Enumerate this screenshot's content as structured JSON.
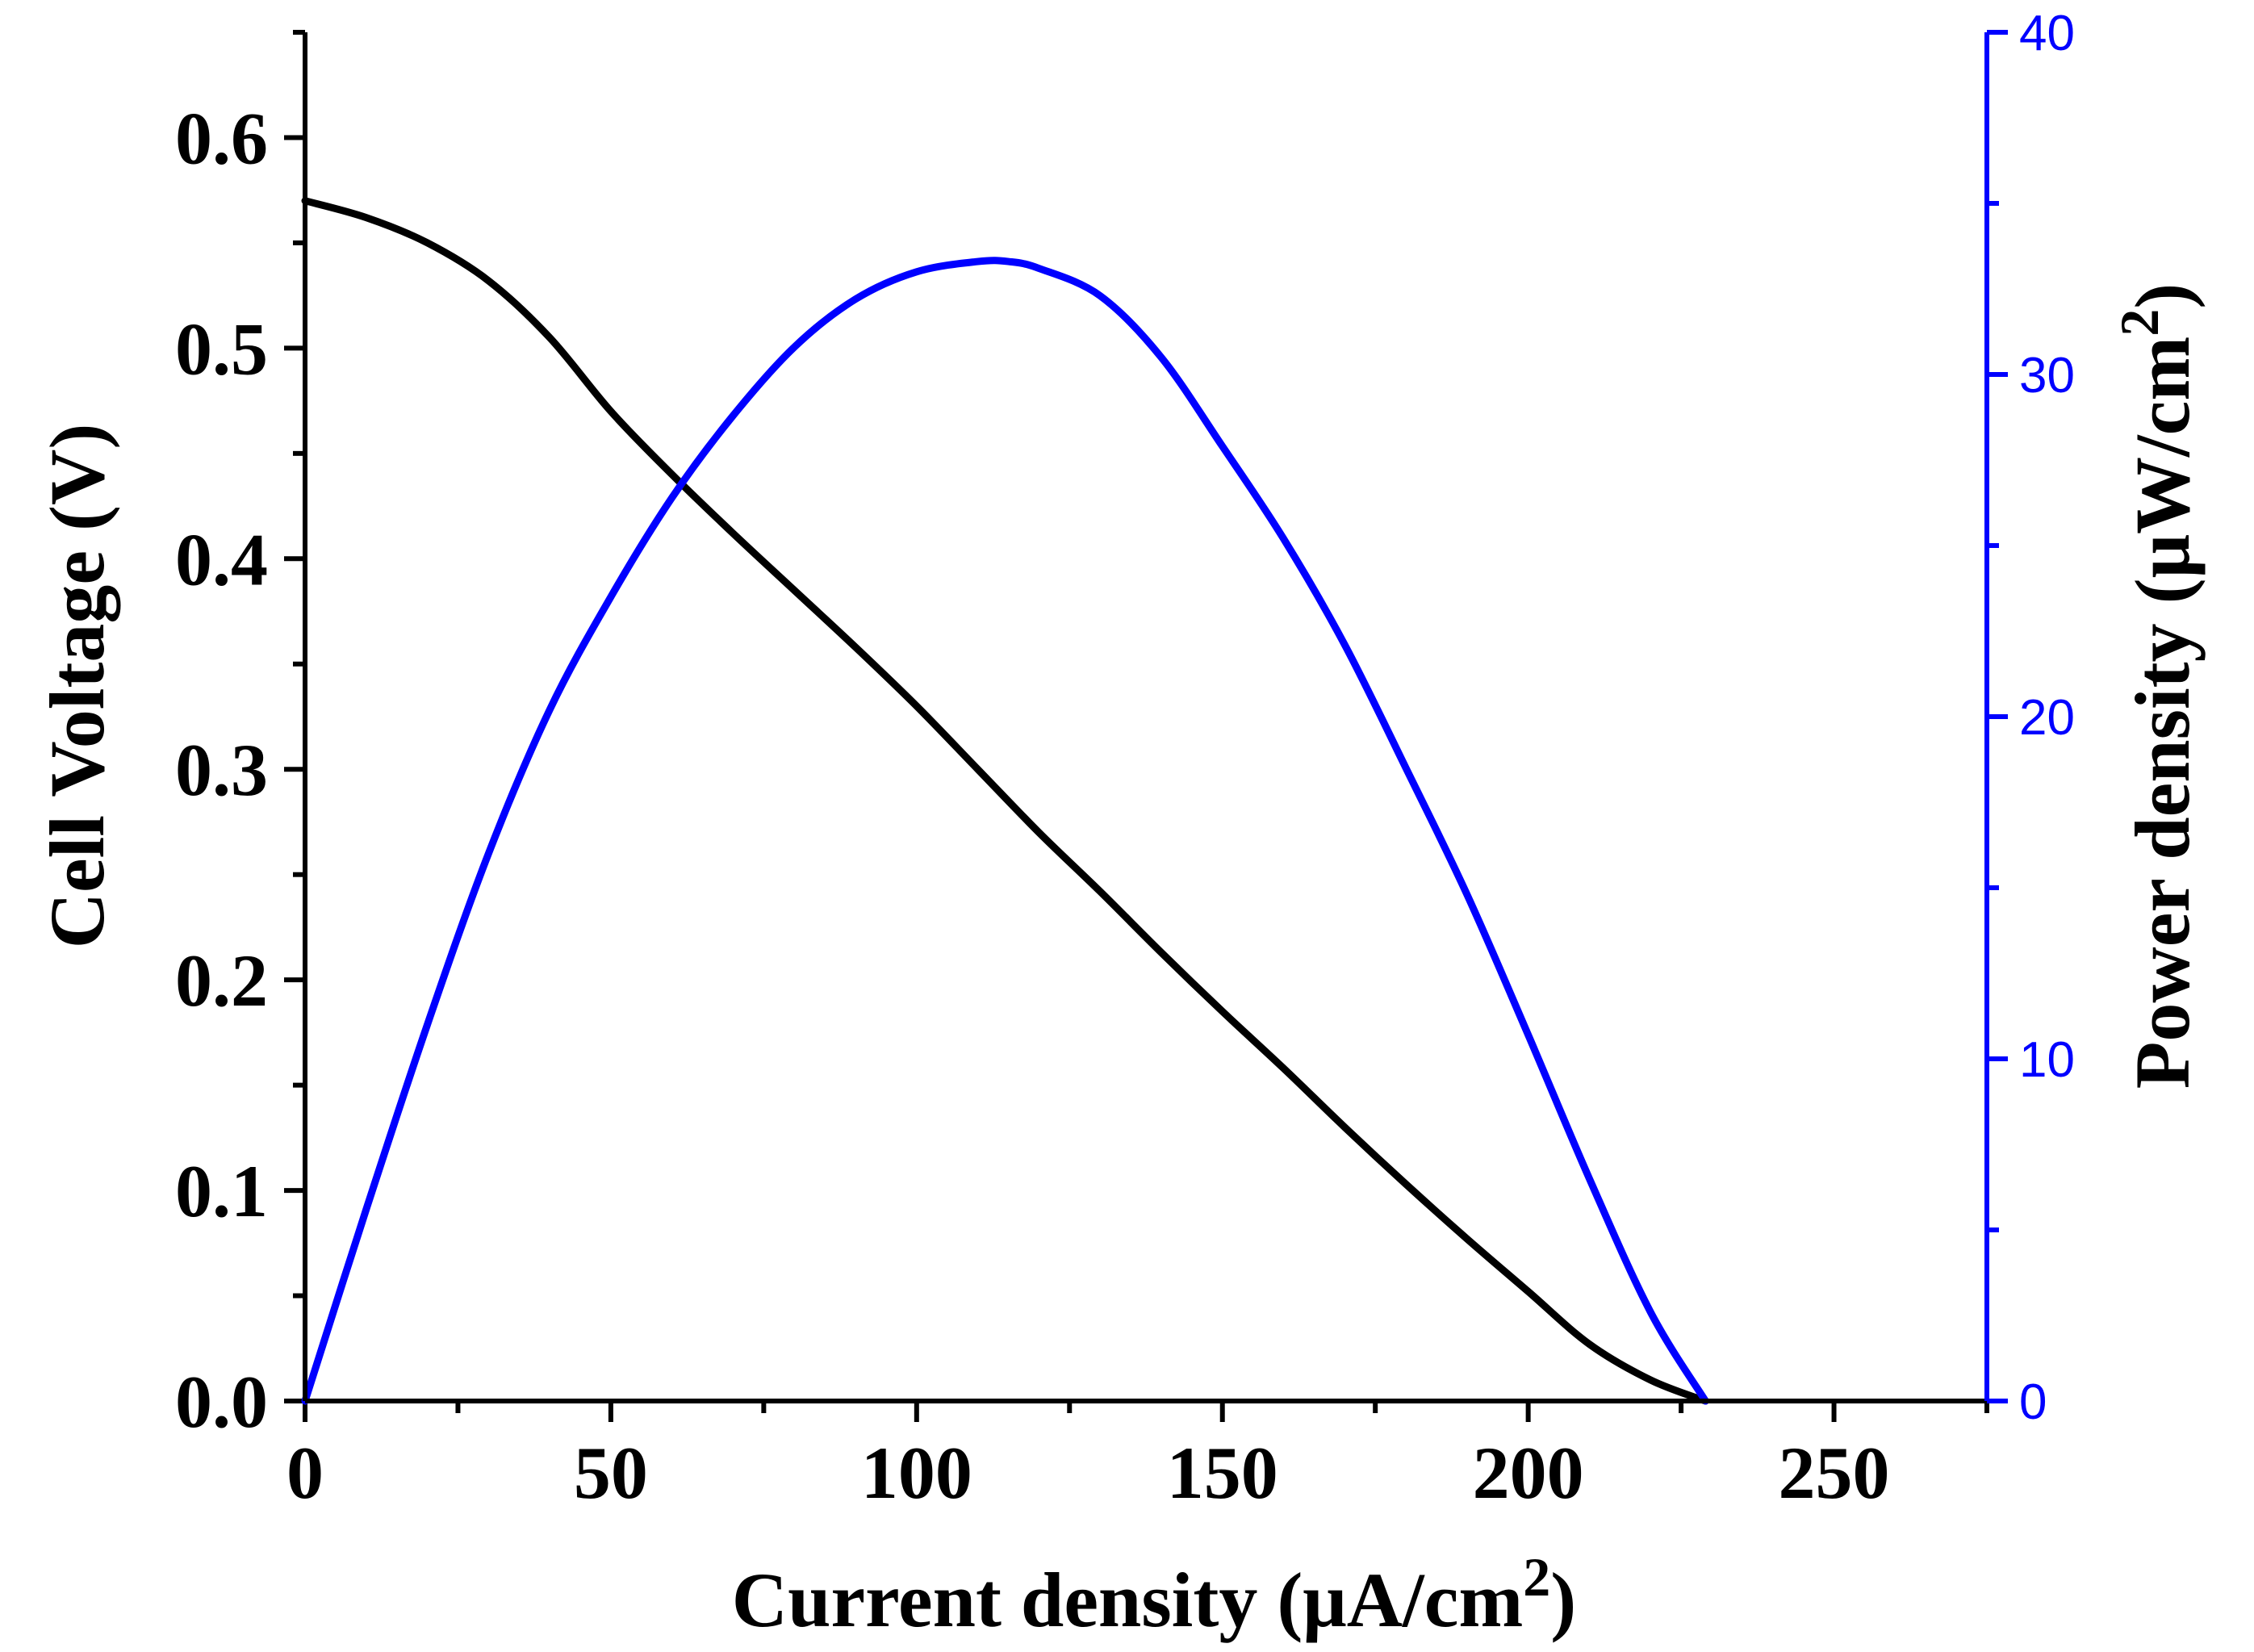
{
  "chart_data": {
    "type": "line",
    "title": "",
    "xlabel": "Current density (μA/cm2)",
    "xlabel_parts": {
      "main": "Current density (μA/cm",
      "sup": "2",
      "close": ")"
    },
    "ylabel_left": "Cell Voltage (V)",
    "ylabel_right": "Power density (μW/cm2)",
    "ylabel_right_parts": {
      "main": "Power density (μW/cm",
      "sup": "2",
      "close": ")"
    },
    "xlim": [
      0,
      275
    ],
    "ylim_left": [
      0,
      0.65
    ],
    "ylim_right": [
      0,
      40
    ],
    "x_ticks": [
      0,
      50,
      100,
      150,
      200,
      250
    ],
    "x_tick_labels": [
      "0",
      "50",
      "100",
      "150",
      "200",
      "250"
    ],
    "y_left_ticks": [
      0.0,
      0.1,
      0.2,
      0.3,
      0.4,
      0.5,
      0.6
    ],
    "y_left_tick_labels": [
      "0.0",
      "0.1",
      "0.2",
      "0.3",
      "0.4",
      "0.5",
      "0.6"
    ],
    "y_right_ticks": [
      0,
      10,
      20,
      30,
      40
    ],
    "y_right_tick_labels": [
      "0",
      "10",
      "20",
      "30",
      "40"
    ],
    "grid": false,
    "legend": "none",
    "series": [
      {
        "axis": "left",
        "color": "#000000",
        "x": [
          0,
          10,
          20,
          30,
          40,
          50,
          60,
          70,
          80,
          90,
          100,
          110,
          120,
          130,
          140,
          150,
          160,
          170,
          180,
          190,
          200,
          210,
          220,
          229
        ],
        "values": [
          0.57,
          0.562,
          0.55,
          0.532,
          0.505,
          0.47,
          0.44,
          0.412,
          0.385,
          0.358,
          0.33,
          0.3,
          0.27,
          0.242,
          0.213,
          0.185,
          0.158,
          0.13,
          0.103,
          0.077,
          0.052,
          0.027,
          0.01,
          0.0
        ]
      },
      {
        "axis": "right",
        "color": "#0000ff",
        "x": [
          0,
          10,
          20,
          30,
          40,
          50,
          60,
          70,
          80,
          90,
          100,
          110,
          115,
          120,
          130,
          140,
          150,
          160,
          170,
          180,
          190,
          200,
          210,
          220,
          229
        ],
        "values": [
          0,
          5.6,
          11.0,
          16.0,
          20.2,
          23.5,
          26.4,
          28.8,
          30.8,
          32.2,
          33.0,
          33.3,
          33.3,
          33.1,
          32.3,
          30.5,
          27.9,
          25.2,
          22.1,
          18.5,
          14.8,
          10.7,
          6.5,
          2.6,
          0
        ]
      }
    ]
  }
}
